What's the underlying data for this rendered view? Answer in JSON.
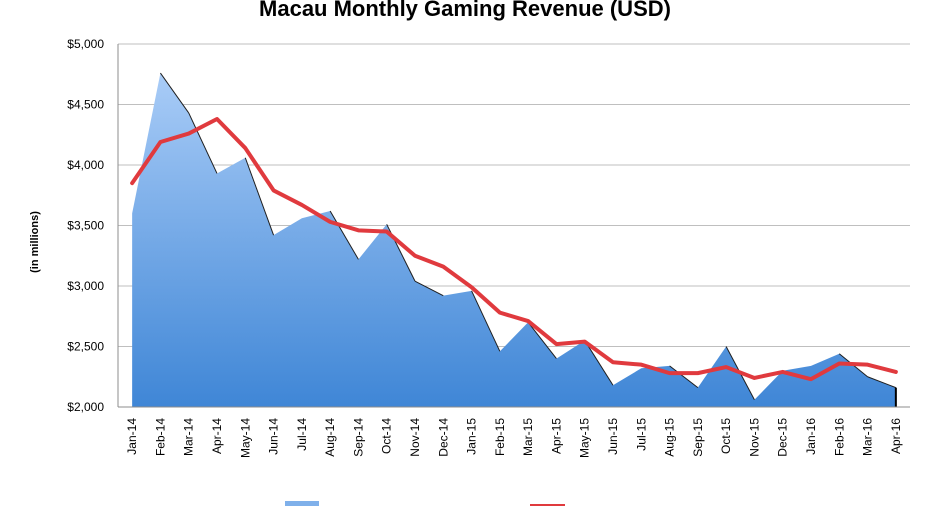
{
  "chart_data": {
    "type": "area",
    "title": "Macau Monthly Gaming Revenue (USD)",
    "ylabel": "(in millions)",
    "xlabel": "",
    "ylim": [
      2000,
      5000
    ],
    "yticks": [
      2000,
      2500,
      3000,
      3500,
      4000,
      4500,
      5000
    ],
    "ytick_labels": [
      "$2,000",
      "$2,500",
      "$3,000",
      "$3,500",
      "$4,000",
      "$4,500",
      "$5,000"
    ],
    "grid": true,
    "categories": [
      "Jan-14",
      "Feb-14",
      "Mar-14",
      "Apr-14",
      "May-14",
      "Jun-14",
      "Jul-14",
      "Aug-14",
      "Sep-14",
      "Oct-14",
      "Nov-14",
      "Dec-14",
      "Jan-15",
      "Feb-15",
      "Mar-15",
      "Apr-15",
      "May-15",
      "Jun-15",
      "Jul-15",
      "Aug-15",
      "Sep-15",
      "Oct-15",
      "Nov-15",
      "Dec-15",
      "Jan-16",
      "Feb-16",
      "Mar-16",
      "Apr-16"
    ],
    "series": [
      {
        "type": "area",
        "color": "#5b9bd5",
        "values": [
          3600,
          4760,
          4430,
          3930,
          4060,
          3420,
          3560,
          3620,
          3220,
          3510,
          3040,
          2920,
          2960,
          2460,
          2700,
          2400,
          2550,
          2180,
          2320,
          2340,
          2160,
          2500,
          2060,
          2300,
          2340,
          2440,
          2250,
          2160
        ]
      },
      {
        "type": "line",
        "color": "#e03a3e",
        "values": [
          3850,
          4190,
          4260,
          4380,
          4140,
          3790,
          3670,
          3530,
          3460,
          3450,
          3250,
          3160,
          2990,
          2780,
          2710,
          2520,
          2540,
          2370,
          2350,
          2280,
          2280,
          2330,
          2240,
          2290,
          2230,
          2360,
          2350,
          2290
        ]
      }
    ]
  }
}
